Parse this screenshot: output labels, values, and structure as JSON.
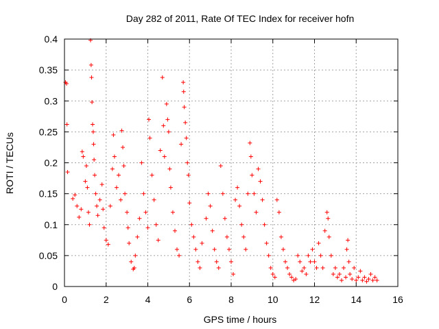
{
  "chart_data": {
    "type": "scatter",
    "title": "Day 282 of 2011, Rate Of TEC Index for receiver hofn",
    "xlabel": "GPS time / hours",
    "ylabel": "ROTI / TECUs",
    "xlim": [
      0,
      16
    ],
    "ylim": [
      0,
      0.4
    ],
    "x_ticks": [
      0,
      2,
      4,
      6,
      8,
      10,
      12,
      14,
      16
    ],
    "y_ticks": [
      0,
      0.05,
      0.1,
      0.15,
      0.2,
      0.25,
      0.3,
      0.35,
      0.4
    ],
    "x_tick_labels": [
      "0",
      "2",
      "4",
      "6",
      "8",
      "10",
      "12",
      "14",
      "16"
    ],
    "y_tick_labels": [
      "0",
      "0.05",
      "0.1",
      "0.15",
      "0.2",
      "0.25",
      "0.3",
      "0.35",
      "0.4"
    ],
    "grid": true,
    "legend": "none",
    "marker": "plus",
    "color": "#ff0000",
    "series": [
      {
        "points": [
          [
            0.05,
            0.33
          ],
          [
            0.1,
            0.328
          ],
          [
            0.12,
            0.262
          ],
          [
            0.15,
            0.185
          ],
          [
            0.4,
            0.142
          ],
          [
            0.5,
            0.148
          ],
          [
            0.6,
            0.13
          ],
          [
            0.7,
            0.112
          ],
          [
            0.8,
            0.125
          ],
          [
            0.85,
            0.218
          ],
          [
            0.9,
            0.21
          ],
          [
            1.0,
            0.17
          ],
          [
            1.05,
            0.195
          ],
          [
            1.1,
            0.16
          ],
          [
            1.15,
            0.12
          ],
          [
            1.2,
            0.1
          ],
          [
            1.25,
            0.398
          ],
          [
            1.28,
            0.358
          ],
          [
            1.3,
            0.338
          ],
          [
            1.32,
            0.298
          ],
          [
            1.35,
            0.262
          ],
          [
            1.38,
            0.25
          ],
          [
            1.4,
            0.23
          ],
          [
            1.42,
            0.205
          ],
          [
            1.45,
            0.18
          ],
          [
            1.5,
            0.15
          ],
          [
            1.55,
            0.13
          ],
          [
            1.6,
            0.115
          ],
          [
            1.7,
            0.14
          ],
          [
            1.8,
            0.165
          ],
          [
            1.85,
            0.125
          ],
          [
            1.9,
            0.095
          ],
          [
            2.0,
            0.075
          ],
          [
            2.1,
            0.068
          ],
          [
            2.2,
            0.13
          ],
          [
            2.3,
            0.19
          ],
          [
            2.35,
            0.245
          ],
          [
            2.4,
            0.21
          ],
          [
            2.5,
            0.16
          ],
          [
            2.6,
            0.18
          ],
          [
            2.7,
            0.14
          ],
          [
            2.75,
            0.252
          ],
          [
            2.8,
            0.225
          ],
          [
            2.85,
            0.195
          ],
          [
            2.9,
            0.15
          ],
          [
            3.0,
            0.12
          ],
          [
            3.05,
            0.095
          ],
          [
            3.1,
            0.07
          ],
          [
            3.2,
            0.04
          ],
          [
            3.3,
            0.028
          ],
          [
            3.35,
            0.03
          ],
          [
            3.4,
            0.05
          ],
          [
            3.5,
            0.08
          ],
          [
            3.6,
            0.11
          ],
          [
            3.7,
            0.2
          ],
          [
            3.8,
            0.15
          ],
          [
            3.9,
            0.12
          ],
          [
            4.0,
            0.095
          ],
          [
            4.05,
            0.27
          ],
          [
            4.1,
            0.24
          ],
          [
            4.2,
            0.18
          ],
          [
            4.3,
            0.14
          ],
          [
            4.4,
            0.1
          ],
          [
            4.5,
            0.075
          ],
          [
            4.6,
            0.22
          ],
          [
            4.7,
            0.338
          ],
          [
            4.75,
            0.26
          ],
          [
            4.8,
            0.21
          ],
          [
            4.9,
            0.295
          ],
          [
            4.95,
            0.27
          ],
          [
            5.0,
            0.25
          ],
          [
            5.05,
            0.19
          ],
          [
            5.1,
            0.16
          ],
          [
            5.2,
            0.12
          ],
          [
            5.3,
            0.09
          ],
          [
            5.4,
            0.06
          ],
          [
            5.5,
            0.05
          ],
          [
            5.6,
            0.23
          ],
          [
            5.7,
            0.33
          ],
          [
            5.72,
            0.315
          ],
          [
            5.75,
            0.29
          ],
          [
            5.8,
            0.265
          ],
          [
            5.85,
            0.24
          ],
          [
            5.9,
            0.2
          ],
          [
            5.95,
            0.18
          ],
          [
            6.0,
            0.135
          ],
          [
            6.1,
            0.1
          ],
          [
            6.2,
            0.08
          ],
          [
            6.3,
            0.06
          ],
          [
            6.4,
            0.04
          ],
          [
            6.5,
            0.03
          ],
          [
            6.6,
            0.07
          ],
          [
            6.8,
            0.11
          ],
          [
            6.9,
            0.15
          ],
          [
            7.0,
            0.13
          ],
          [
            7.1,
            0.09
          ],
          [
            7.2,
            0.06
          ],
          [
            7.3,
            0.04
          ],
          [
            7.4,
            0.03
          ],
          [
            7.5,
            0.195
          ],
          [
            7.6,
            0.15
          ],
          [
            7.7,
            0.11
          ],
          [
            7.8,
            0.08
          ],
          [
            7.9,
            0.06
          ],
          [
            8.0,
            0.04
          ],
          [
            8.1,
            0.02
          ],
          [
            8.2,
            0.14
          ],
          [
            8.3,
            0.16
          ],
          [
            8.4,
            0.13
          ],
          [
            8.5,
            0.1
          ],
          [
            8.6,
            0.08
          ],
          [
            8.7,
            0.06
          ],
          [
            8.8,
            0.15
          ],
          [
            8.9,
            0.232
          ],
          [
            8.95,
            0.21
          ],
          [
            9.0,
            0.18
          ],
          [
            9.1,
            0.15
          ],
          [
            9.2,
            0.12
          ],
          [
            9.3,
            0.19
          ],
          [
            9.4,
            0.17
          ],
          [
            9.5,
            0.14
          ],
          [
            9.6,
            0.1
          ],
          [
            9.7,
            0.07
          ],
          [
            9.8,
            0.05
          ],
          [
            9.9,
            0.03
          ],
          [
            10.0,
            0.02
          ],
          [
            10.1,
            0.015
          ],
          [
            10.2,
            0.14
          ],
          [
            10.3,
            0.12
          ],
          [
            10.4,
            0.08
          ],
          [
            10.5,
            0.06
          ],
          [
            10.6,
            0.04
          ],
          [
            10.7,
            0.03
          ],
          [
            10.8,
            0.02
          ],
          [
            10.9,
            0.015
          ],
          [
            11.0,
            0.01
          ],
          [
            11.1,
            0.012
          ],
          [
            11.2,
            0.05
          ],
          [
            11.3,
            0.04
          ],
          [
            11.4,
            0.025
          ],
          [
            11.5,
            0.03
          ],
          [
            11.6,
            0.02
          ],
          [
            11.7,
            0.05
          ],
          [
            11.8,
            0.04
          ],
          [
            11.9,
            0.06
          ],
          [
            12.0,
            0.04
          ],
          [
            12.1,
            0.03
          ],
          [
            12.2,
            0.07
          ],
          [
            12.3,
            0.05
          ],
          [
            12.4,
            0.03
          ],
          [
            12.5,
            0.09
          ],
          [
            12.6,
            0.12
          ],
          [
            12.65,
            0.11
          ],
          [
            12.7,
            0.08
          ],
          [
            12.8,
            0.05
          ],
          [
            12.9,
            0.02
          ],
          [
            13.0,
            0.03
          ],
          [
            13.1,
            0.015
          ],
          [
            13.2,
            0.02
          ],
          [
            13.3,
            0.01
          ],
          [
            13.4,
            0.03
          ],
          [
            13.5,
            0.015
          ],
          [
            13.55,
            0.06
          ],
          [
            13.6,
            0.075
          ],
          [
            13.65,
            0.04
          ],
          [
            13.7,
            0.02
          ],
          [
            13.8,
            0.012
          ],
          [
            13.9,
            0.03
          ],
          [
            14.0,
            0.01
          ],
          [
            14.1,
            0.015
          ],
          [
            14.2,
            0.025
          ],
          [
            14.3,
            0.01
          ],
          [
            14.4,
            0.015
          ],
          [
            14.5,
            0.008
          ],
          [
            14.6,
            0.012
          ],
          [
            14.7,
            0.02
          ],
          [
            14.8,
            0.01
          ],
          [
            14.9,
            0.015
          ],
          [
            15.0,
            0.01
          ]
        ]
      }
    ]
  }
}
